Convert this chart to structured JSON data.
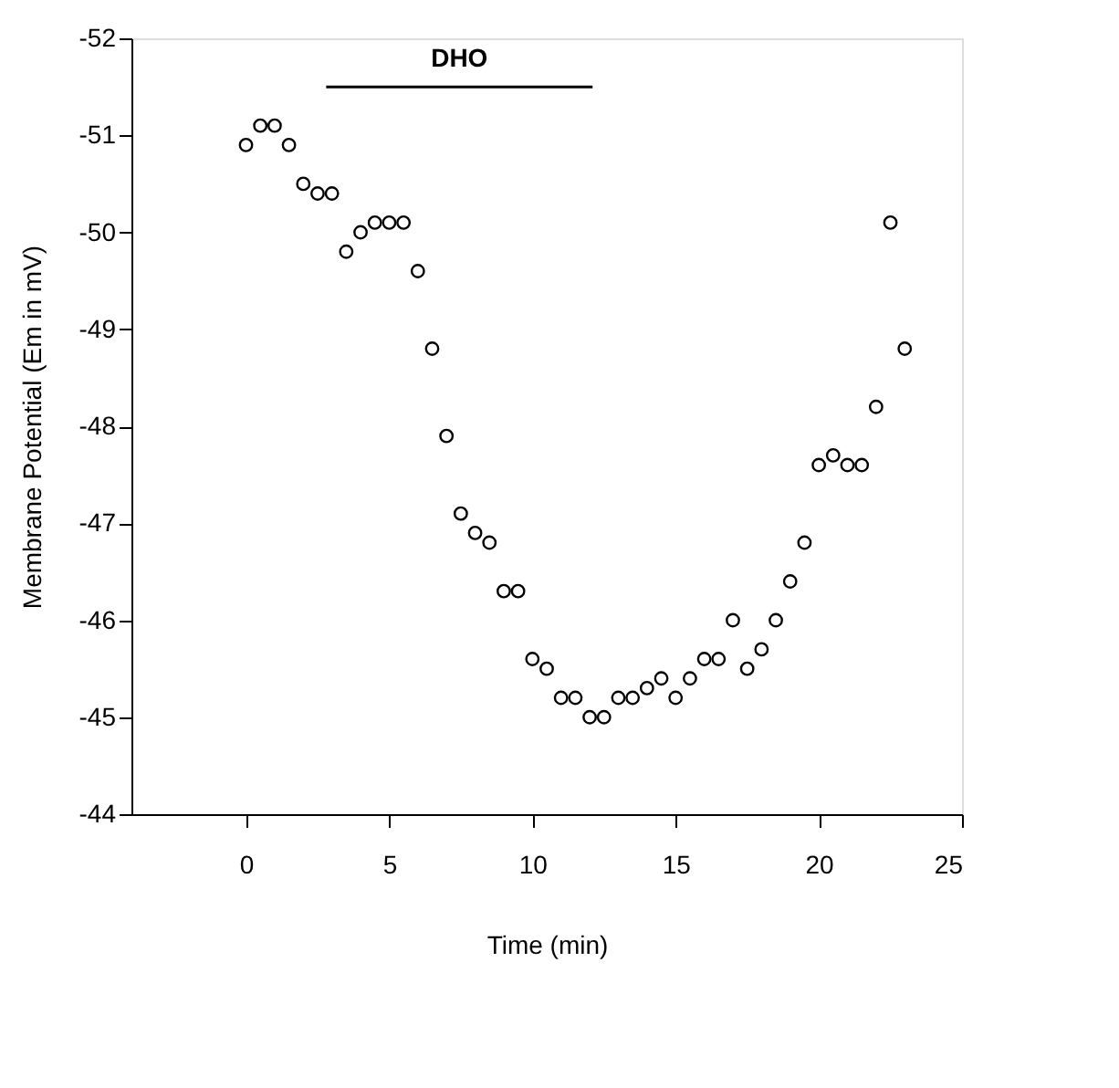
{
  "chart_data": {
    "type": "scatter",
    "xlabel": "Time (min)",
    "ylabel": "Membrane Potential (Em in mV)",
    "x": [
      0,
      0.5,
      1,
      1.5,
      2,
      2.5,
      3,
      3.5,
      4,
      4.5,
      5,
      5.5,
      6,
      6.5,
      7,
      7.5,
      8,
      8.5,
      9,
      9.5,
      10,
      10.5,
      11,
      11.5,
      12,
      12.5,
      13,
      13.5,
      14,
      14.5,
      15,
      15.5,
      16,
      16.5,
      17,
      17.5,
      18,
      18.5,
      19,
      19.5,
      20,
      20.5,
      21,
      21.5,
      22,
      22.5,
      23
    ],
    "series": [
      {
        "color": "#000000",
        "values": [
          -50.9,
          -51.1,
          -51.1,
          -50.9,
          -50.5,
          -50.4,
          -50.4,
          -49.8,
          -50.0,
          -50.1,
          -50.1,
          -50.1,
          -49.6,
          -48.8,
          -47.9,
          -47.1,
          -46.9,
          -46.8,
          -46.3,
          -46.3,
          -45.6,
          -45.5,
          -45.2,
          -45.2,
          -45.0,
          -45.0,
          -45.2,
          -45.2,
          -45.3,
          -45.4,
          -45.2,
          -45.4,
          -45.6,
          -45.6,
          -46.0,
          -45.5,
          -45.7,
          -46.0,
          -46.4,
          -46.8,
          -47.6,
          -47.7,
          -47.6,
          -47.6,
          -48.2,
          -50.1,
          -48.8
        ]
      },
      {
        "type": "line",
        "name": "DHO",
        "color": "#000000",
        "x": [
          2.8,
          12.1
        ],
        "values": [
          -51.5,
          -51.5
        ],
        "marker": "none"
      }
    ],
    "xlim": [
      -4,
      25
    ],
    "xticks": [
      0,
      5,
      10,
      15,
      20,
      25
    ],
    "ylim": [
      -44,
      -52
    ],
    "yticks": [
      -44,
      -45,
      -46,
      -47,
      -48,
      -49,
      -50,
      -51,
      -52
    ],
    "marker": "circle",
    "grid": false,
    "legend": false
  }
}
